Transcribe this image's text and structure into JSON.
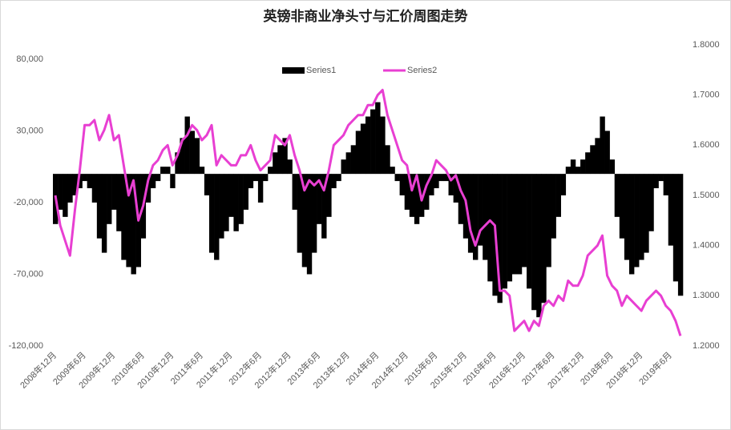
{
  "chart_data": {
    "type": "bar-line",
    "title": "英镑非商业净头寸与汇价周图走势",
    "categories": [
      "2008年12月",
      null,
      null,
      null,
      null,
      null,
      "2009年6月",
      null,
      null,
      null,
      null,
      null,
      "2009年12月",
      null,
      null,
      null,
      null,
      null,
      "2010年6月",
      null,
      null,
      null,
      null,
      null,
      "2010年12月",
      null,
      null,
      null,
      null,
      null,
      "2011年6月",
      null,
      null,
      null,
      null,
      null,
      "2011年12月",
      null,
      null,
      null,
      null,
      null,
      "2012年6月",
      null,
      null,
      null,
      null,
      null,
      "2012年12月",
      null,
      null,
      null,
      null,
      null,
      "2013年6月",
      null,
      null,
      null,
      null,
      null,
      "2013年12月",
      null,
      null,
      null,
      null,
      null,
      "2014年6月",
      null,
      null,
      null,
      null,
      null,
      "2014年12月",
      null,
      null,
      null,
      null,
      null,
      "2015年6月",
      null,
      null,
      null,
      null,
      null,
      "2015年12月",
      null,
      null,
      null,
      null,
      null,
      "2016年6月",
      null,
      null,
      null,
      null,
      null,
      "2016年12月",
      null,
      null,
      null,
      null,
      null,
      "2017年6月",
      null,
      null,
      null,
      null,
      null,
      "2017年12月",
      null,
      null,
      null,
      null,
      null,
      "2018年6月",
      null,
      null,
      null,
      null,
      null,
      "2018年12月",
      null,
      null,
      null,
      null,
      null,
      "2019年6月",
      null,
      null
    ],
    "series": [
      {
        "name": "Series1",
        "color": "#000000",
        "values": [
          -35000,
          -25000,
          -30000,
          -20000,
          -15000,
          -10000,
          -5000,
          -10000,
          -20000,
          -45000,
          -55000,
          -35000,
          -25000,
          -40000,
          -60000,
          -65000,
          -70000,
          -65000,
          -45000,
          -20000,
          -10000,
          -5000,
          5000,
          5000,
          -10000,
          15000,
          25000,
          40000,
          30000,
          25000,
          5000,
          -15000,
          -55000,
          -60000,
          -45000,
          -40000,
          -30000,
          -40000,
          -35000,
          -25000,
          -10000,
          -5000,
          -20000,
          -5000,
          5000,
          15000,
          20000,
          25000,
          10000,
          -25000,
          -55000,
          -65000,
          -70000,
          -55000,
          -35000,
          -45000,
          -30000,
          -10000,
          -5000,
          10000,
          15000,
          20000,
          30000,
          35000,
          40000,
          45000,
          50000,
          40000,
          20000,
          5000,
          -5000,
          -15000,
          -25000,
          -30000,
          -35000,
          -30000,
          -25000,
          -15000,
          -10000,
          -5000,
          -5000,
          -15000,
          -20000,
          -35000,
          -45000,
          -55000,
          -60000,
          -50000,
          -60000,
          -75000,
          -85000,
          -90000,
          -80000,
          -75000,
          -70000,
          -70000,
          -65000,
          -80000,
          -95000,
          -100000,
          -90000,
          -65000,
          -45000,
          -30000,
          -15000,
          5000,
          10000,
          5000,
          10000,
          15000,
          20000,
          25000,
          40000,
          30000,
          10000,
          -30000,
          -45000,
          -60000,
          -70000,
          -65000,
          -60000,
          -55000,
          -40000,
          -10000,
          -5000,
          -15000,
          -50000,
          -75000,
          -85000
        ]
      },
      {
        "name": "Series2",
        "color": "#e83fd2",
        "axis": "y2",
        "values": [
          1.5,
          1.44,
          1.41,
          1.38,
          1.47,
          1.55,
          1.64,
          1.64,
          1.65,
          1.61,
          1.63,
          1.66,
          1.61,
          1.62,
          1.56,
          1.5,
          1.53,
          1.45,
          1.48,
          1.53,
          1.56,
          1.57,
          1.59,
          1.6,
          1.56,
          1.58,
          1.61,
          1.62,
          1.64,
          1.63,
          1.61,
          1.62,
          1.64,
          1.56,
          1.58,
          1.57,
          1.56,
          1.56,
          1.58,
          1.58,
          1.6,
          1.57,
          1.55,
          1.56,
          1.57,
          1.62,
          1.61,
          1.6,
          1.62,
          1.58,
          1.55,
          1.51,
          1.53,
          1.52,
          1.53,
          1.51,
          1.55,
          1.6,
          1.61,
          1.62,
          1.64,
          1.65,
          1.66,
          1.66,
          1.68,
          1.68,
          1.7,
          1.71,
          1.66,
          1.63,
          1.6,
          1.57,
          1.56,
          1.51,
          1.54,
          1.49,
          1.52,
          1.54,
          1.57,
          1.56,
          1.55,
          1.53,
          1.54,
          1.51,
          1.49,
          1.43,
          1.4,
          1.43,
          1.44,
          1.45,
          1.44,
          1.31,
          1.31,
          1.3,
          1.23,
          1.24,
          1.25,
          1.23,
          1.25,
          1.24,
          1.28,
          1.29,
          1.28,
          1.3,
          1.29,
          1.33,
          1.32,
          1.32,
          1.34,
          1.38,
          1.39,
          1.4,
          1.42,
          1.34,
          1.32,
          1.31,
          1.28,
          1.3,
          1.29,
          1.28,
          1.27,
          1.29,
          1.3,
          1.31,
          1.3,
          1.28,
          1.27,
          1.25,
          1.22
        ]
      }
    ],
    "ylim": [
      -120000,
      90000
    ],
    "yticks": [
      {
        "value": -120000,
        "label": "-120,000"
      },
      {
        "value": -70000,
        "label": "-70,000"
      },
      {
        "value": -20000,
        "label": "-20,000"
      },
      {
        "value": 30000,
        "label": "30,000"
      },
      {
        "value": 80000,
        "label": "80,000"
      }
    ],
    "y2lim": [
      1.2,
      1.8
    ],
    "y2ticks": [
      {
        "value": 1.2,
        "label": "1.2000"
      },
      {
        "value": 1.3,
        "label": "1.3000"
      },
      {
        "value": 1.4,
        "label": "1.4000"
      },
      {
        "value": 1.5,
        "label": "1.5000"
      },
      {
        "value": 1.6,
        "label": "1.6000"
      },
      {
        "value": 1.7,
        "label": "1.7000"
      },
      {
        "value": 1.8,
        "label": "1.8000"
      }
    ],
    "legend": "top"
  }
}
